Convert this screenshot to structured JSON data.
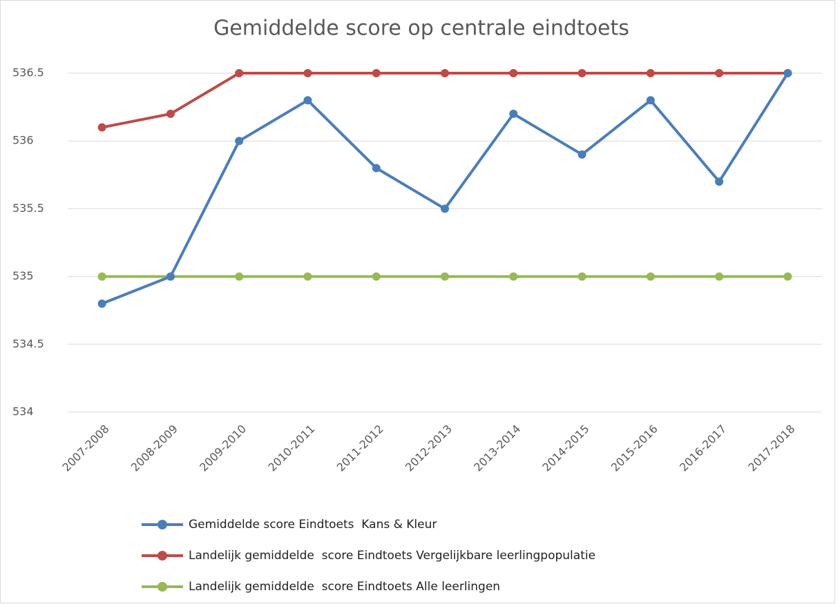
{
  "chart_data": {
    "type": "line",
    "title": "Gemiddelde score op centrale eindtoets",
    "categories": [
      "2007-2008",
      "2008-2009",
      "2009-2010",
      "2010-2011",
      "2011-2012",
      "2012-2013",
      "2013-2014",
      "2014-2015",
      "2015-2016",
      "2016-2017",
      "2017-2018"
    ],
    "series": [
      {
        "name": "Gemiddelde score Eindtoets  Kans & Kleur",
        "color": "#4a7ebb",
        "values": [
          534.8,
          535,
          536,
          536.3,
          535.8,
          535.5,
          536.2,
          535.9,
          536.3,
          535.7,
          536.5
        ]
      },
      {
        "name": "Landelijk gemiddelde  score Eindtoets Vergelijkbare leerlingpopulatie",
        "color": "#be4b48",
        "values": [
          536.1,
          536.2,
          536.5,
          536.5,
          536.5,
          536.5,
          536.5,
          536.5,
          536.5,
          536.5,
          536.5
        ]
      },
      {
        "name": "Landelijk gemiddelde  score Eindtoets Alle leerlingen",
        "color": "#98b954",
        "values": [
          535,
          535,
          535,
          535,
          535,
          535,
          535,
          535,
          535,
          535,
          535
        ]
      }
    ],
    "ylim": [
      534,
      536.5
    ],
    "yticks": [
      534,
      534.5,
      535,
      535.5,
      536,
      536.5
    ],
    "grid": true,
    "legend": "bottom"
  }
}
